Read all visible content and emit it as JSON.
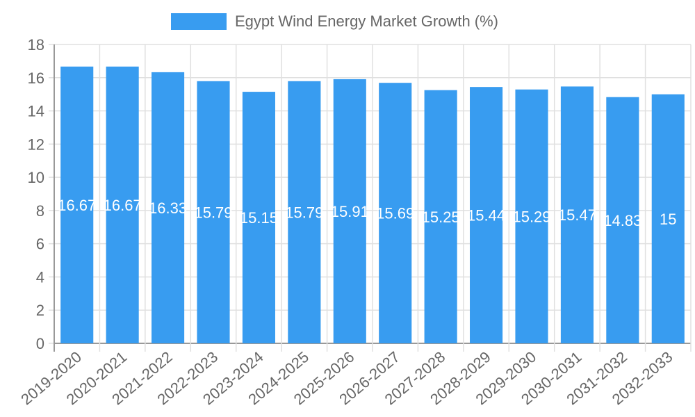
{
  "chart_data": {
    "type": "bar",
    "title": "",
    "legend": {
      "label": "Egypt Wind Energy Market Growth (%)",
      "position": "top"
    },
    "categories": [
      "2019-2020",
      "2020-2021",
      "2021-2022",
      "2022-2023",
      "2023-2024",
      "2024-2025",
      "2025-2026",
      "2026-2027",
      "2027-2028",
      "2028-2029",
      "2029-2030",
      "2030-2031",
      "2031-2032",
      "2032-2033"
    ],
    "series": [
      {
        "name": "Egypt Wind Energy Market Growth (%)",
        "color": "#389cf0",
        "values": [
          16.67,
          16.67,
          16.33,
          15.79,
          15.15,
          15.79,
          15.91,
          15.69,
          15.25,
          15.44,
          15.29,
          15.47,
          14.83,
          15
        ]
      }
    ],
    "data_labels": [
      "16.67",
      "16.67",
      "16.33",
      "15.79",
      "15.15",
      "15.79",
      "15.91",
      "15.69",
      "15.25",
      "15.44",
      "15.29",
      "15.47",
      "14.83",
      "15"
    ],
    "xlabel": "",
    "ylabel": "",
    "ylim": [
      0,
      18
    ],
    "yticks": [
      0,
      2,
      4,
      6,
      8,
      10,
      12,
      14,
      16,
      18
    ],
    "grid": true
  },
  "colors": {
    "bar": "#389cf0",
    "grid": "#e0e0e0",
    "axis": "#999999",
    "text": "#666666",
    "label": "#ffffff"
  }
}
